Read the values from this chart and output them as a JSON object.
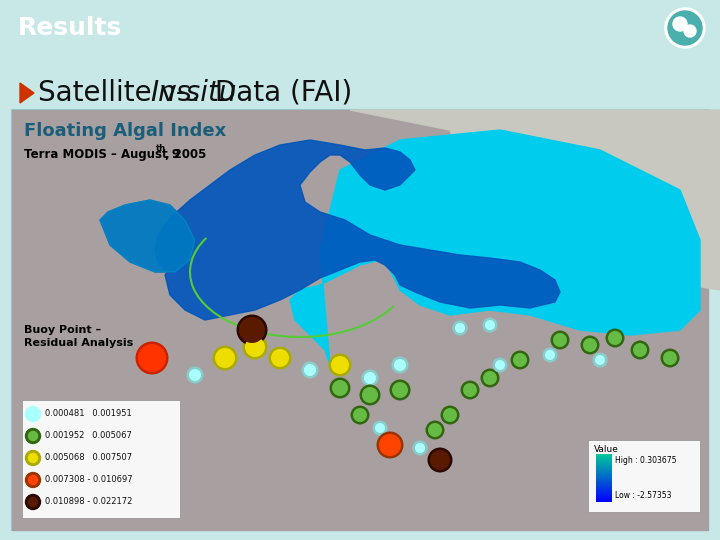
{
  "header_color": "#4AAFAD",
  "header_text": "Results",
  "header_text_color": "#FFFFFF",
  "header_font_size": 18,
  "bg_color": "#FFFFFF",
  "slide_bg_color": "#C8E8E8",
  "subtitle_arrow_color": "#CC3300",
  "subtitle_font_size": 20,
  "subtitle_color": "#111111",
  "panel_border_color": "#99CCCC",
  "floating_algal_title": "Floating Algal Index",
  "floating_algal_color": "#1A5E7A",
  "terra_modis_color": "#000000",
  "buoy_label": "Buoy Point –\nResidual Analysis",
  "buoy_label_color": "#000000",
  "legend_items": [
    {
      "color_inner": "#AAFFFF",
      "color_outer": "#AAFFFF",
      "label": "0.000481   0.001951"
    },
    {
      "color_inner": "#66BB44",
      "color_outer": "#336611",
      "label": "0.001952   0.005067"
    },
    {
      "color_inner": "#EEDD00",
      "color_outer": "#AAAA00",
      "label": "0.005068   0.007507"
    },
    {
      "color_inner": "#FF4400",
      "color_outer": "#993300",
      "label": "0.007308 - 0.010697"
    },
    {
      "color_inner": "#5A1A00",
      "color_outer": "#2A0A00",
      "label": "0.010898 - 0.022172"
    }
  ],
  "value_legend_high": "High : 0.303675",
  "value_legend_low": "Low : -2.57353",
  "buoy_positions": [
    [
      152,
      248,
      "#FF3300",
      "#CC2200",
      14
    ],
    [
      195,
      265,
      "#AAFFFF",
      "#88CCCC",
      6
    ],
    [
      225,
      248,
      "#EEDD00",
      "#AAAA00",
      10
    ],
    [
      255,
      237,
      "#EEDD00",
      "#AAAA00",
      10
    ],
    [
      252,
      220,
      "#5A1A00",
      "#2A0A00",
      13
    ],
    [
      280,
      248,
      "#EEDD00",
      "#AAAA00",
      9
    ],
    [
      310,
      260,
      "#AAFFFF",
      "#88CCCC",
      6
    ],
    [
      340,
      255,
      "#EEDD00",
      "#AAAA00",
      9
    ],
    [
      340,
      278,
      "#66BB44",
      "#336611",
      8
    ],
    [
      370,
      268,
      "#AAFFFF",
      "#88CCCC",
      6
    ],
    [
      370,
      285,
      "#66BB44",
      "#336611",
      8
    ],
    [
      400,
      255,
      "#AAFFFF",
      "#88CCCC",
      6
    ],
    [
      400,
      280,
      "#66BB44",
      "#336611",
      8
    ],
    [
      360,
      305,
      "#66BB44",
      "#336611",
      7
    ],
    [
      380,
      318,
      "#AAFFFF",
      "#88CCCC",
      5
    ],
    [
      390,
      335,
      "#FF4400",
      "#993300",
      11
    ],
    [
      420,
      338,
      "#AAFFFF",
      "#88CCCC",
      5
    ],
    [
      435,
      320,
      "#66BB44",
      "#336611",
      7
    ],
    [
      450,
      305,
      "#66BB44",
      "#336611",
      7
    ],
    [
      440,
      350,
      "#5A1A00",
      "#2A0A00",
      10
    ],
    [
      470,
      280,
      "#66BB44",
      "#336611",
      7
    ],
    [
      490,
      268,
      "#66BB44",
      "#336611",
      7
    ],
    [
      500,
      255,
      "#AAFFFF",
      "#88CCCC",
      5
    ],
    [
      520,
      250,
      "#66BB44",
      "#336611",
      7
    ],
    [
      550,
      245,
      "#AAFFFF",
      "#88CCCC",
      5
    ],
    [
      560,
      230,
      "#66BB44",
      "#336611",
      7
    ],
    [
      590,
      235,
      "#66BB44",
      "#336611",
      7
    ],
    [
      600,
      250,
      "#AAFFFF",
      "#88CCCC",
      5
    ],
    [
      615,
      228,
      "#66BB44",
      "#336611",
      7
    ],
    [
      640,
      240,
      "#66BB44",
      "#336611",
      7
    ],
    [
      670,
      248,
      "#66BB44",
      "#336611",
      7
    ],
    [
      490,
      215,
      "#AAFFFF",
      "#88CCCC",
      5
    ],
    [
      460,
      218,
      "#AAFFFF",
      "#88CCCC",
      5
    ]
  ]
}
